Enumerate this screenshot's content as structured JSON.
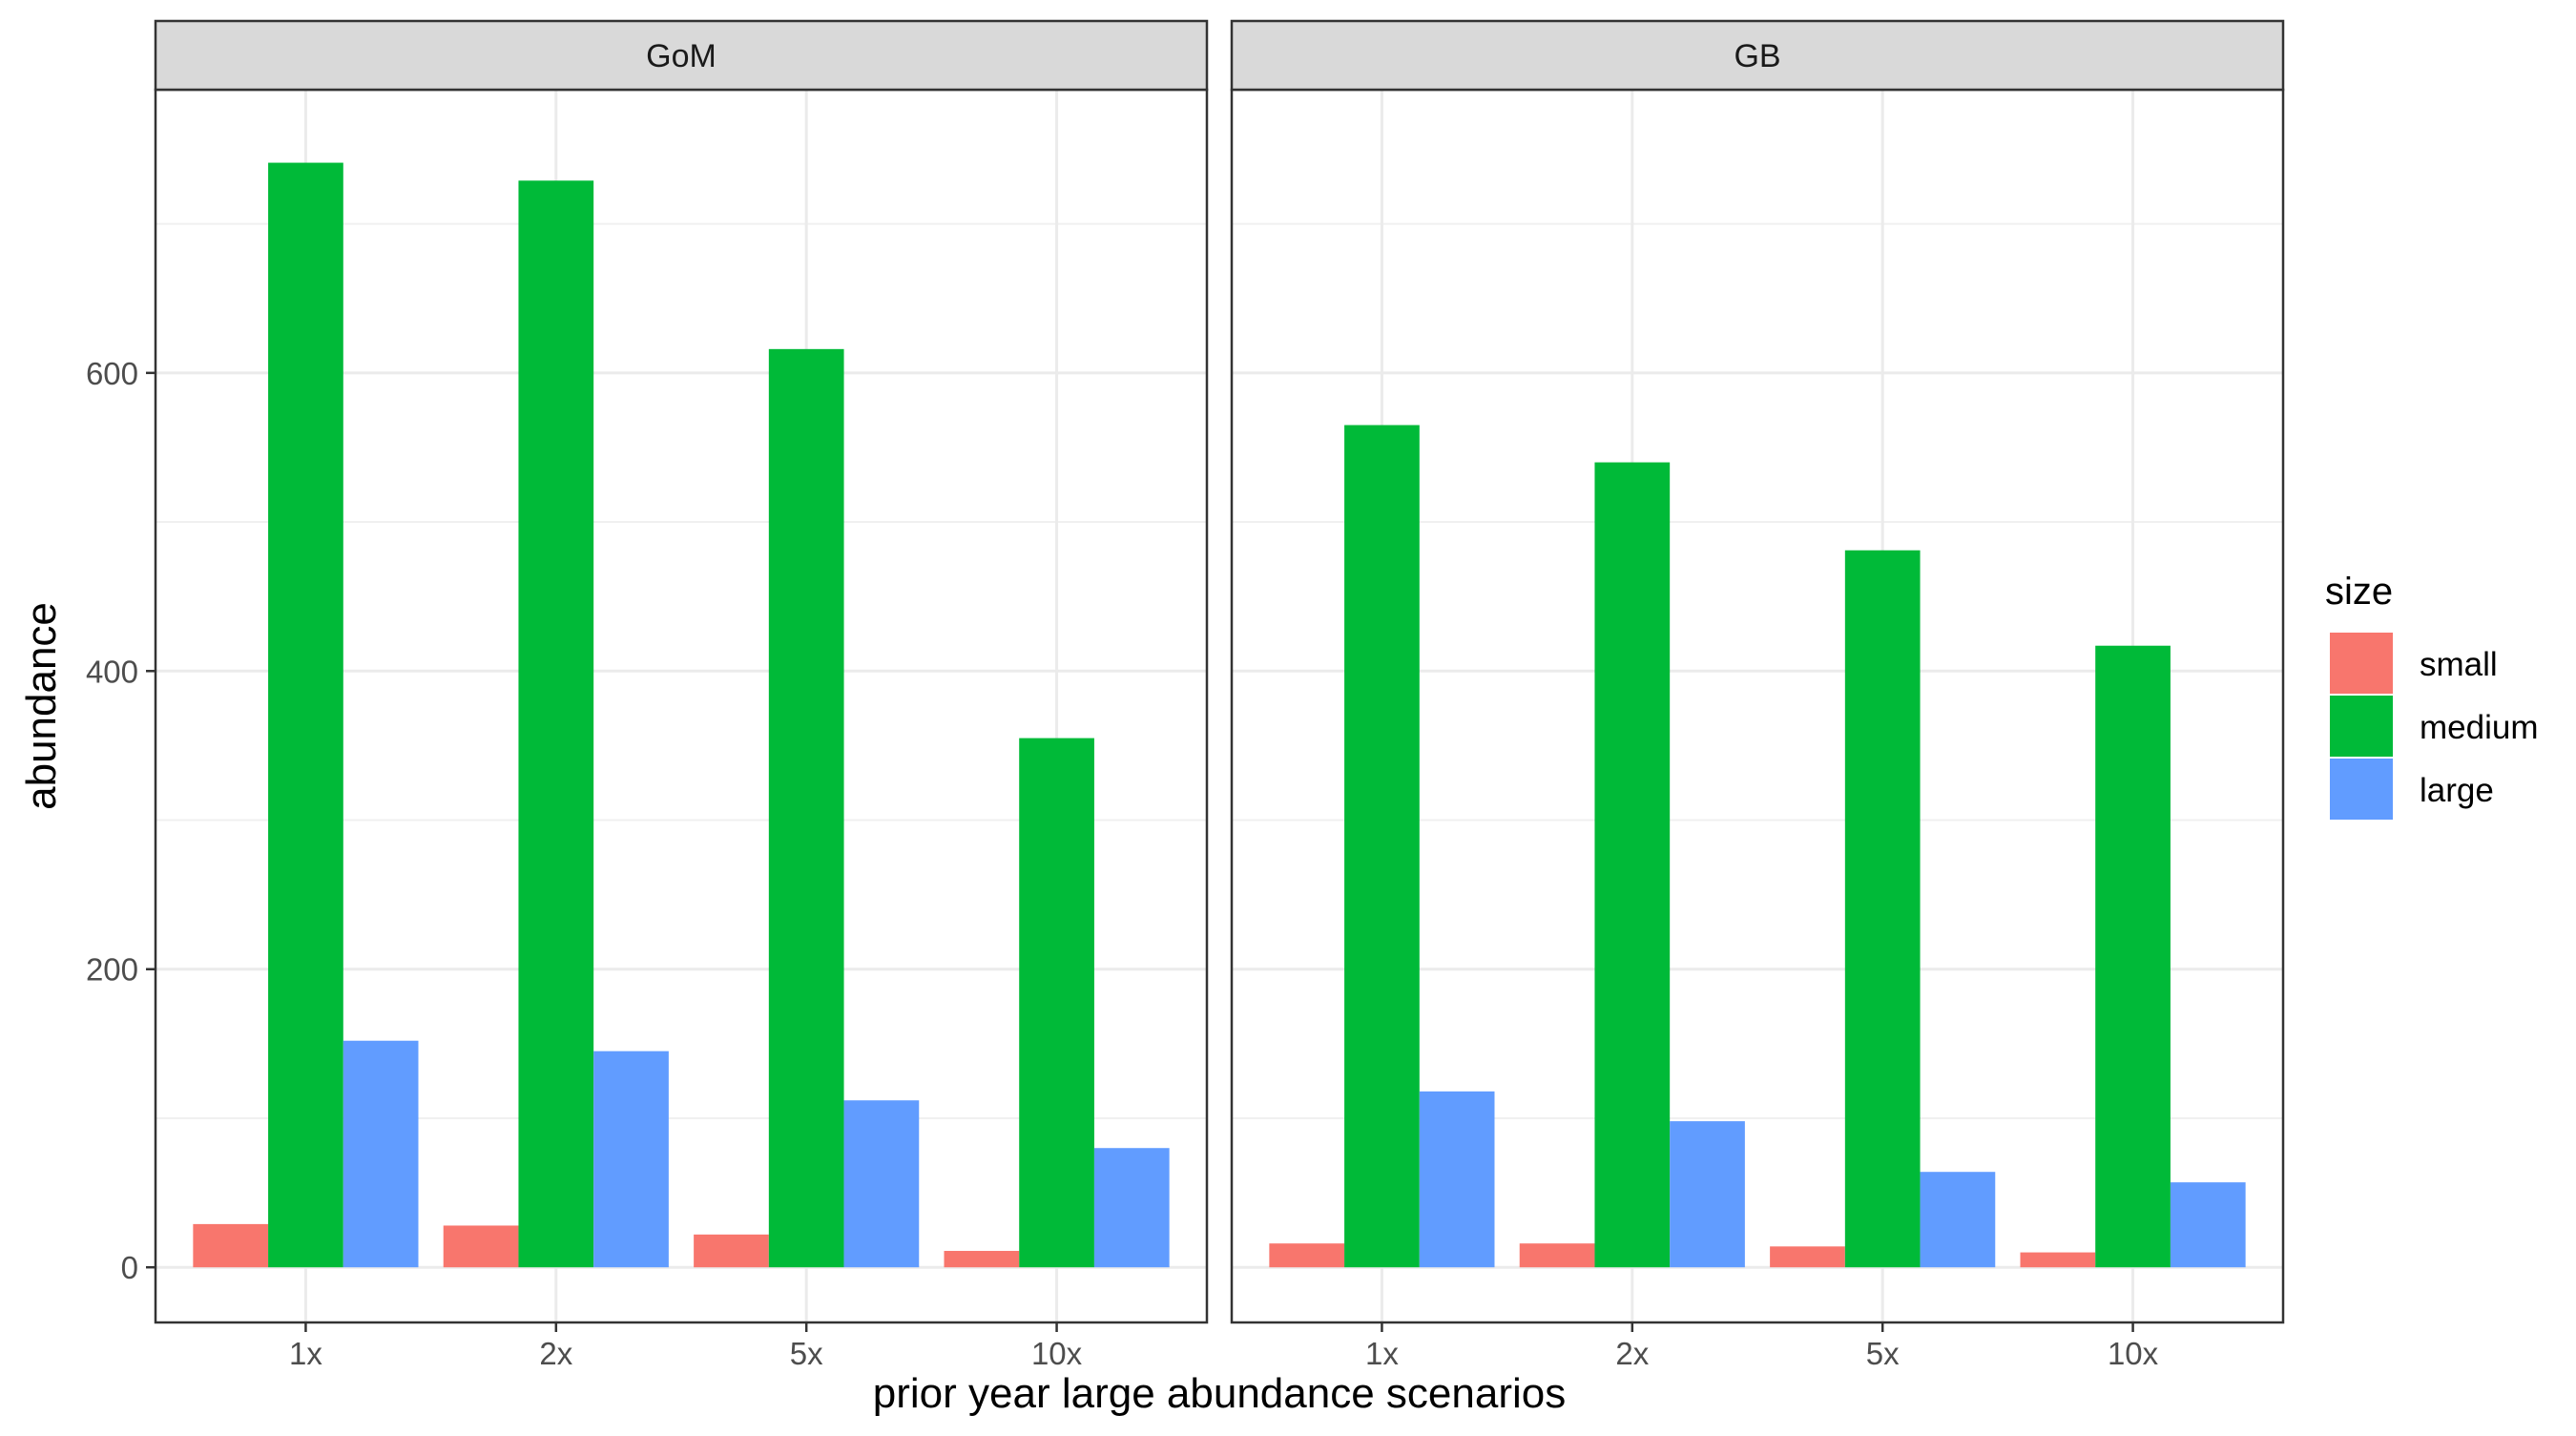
{
  "chart_data": {
    "type": "bar",
    "xlabel": "prior year large abundance scenarios",
    "ylabel": "abundance",
    "ylim": [
      -37,
      790
    ],
    "yticks": [
      0,
      200,
      400,
      600
    ],
    "categories": [
      "1x",
      "2x",
      "5x",
      "10x"
    ],
    "legend": {
      "title": "size",
      "placement": "right",
      "entries": [
        {
          "label": "small",
          "color": "#F8766D"
        },
        {
          "label": "medium",
          "color": "#00BA38"
        },
        {
          "label": "large",
          "color": "#619CFF"
        }
      ]
    },
    "grid": true,
    "panels": [
      {
        "label": "GoM",
        "series": [
          {
            "name": "small",
            "values": [
              29,
              28,
              22,
              11
            ]
          },
          {
            "name": "medium",
            "values": [
              741,
              729,
              616,
              355
            ]
          },
          {
            "name": "large",
            "values": [
              152,
              145,
              112,
              80
            ]
          }
        ]
      },
      {
        "label": "GB",
        "series": [
          {
            "name": "small",
            "values": [
              16,
              16,
              14,
              10
            ]
          },
          {
            "name": "medium",
            "values": [
              565,
              540,
              481,
              417
            ]
          },
          {
            "name": "large",
            "values": [
              118,
              98,
              64,
              57
            ]
          }
        ]
      }
    ]
  }
}
